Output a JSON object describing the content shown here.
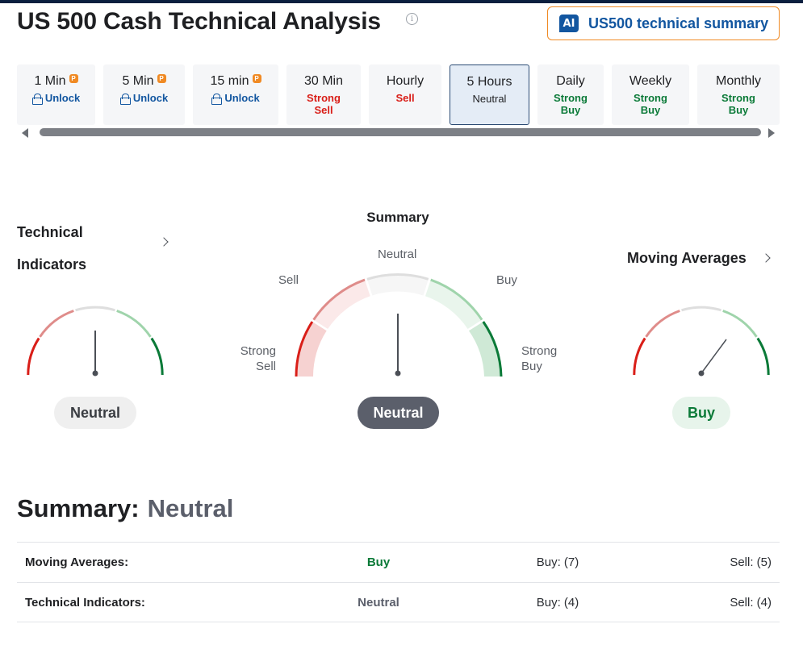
{
  "title": "US 500 Cash Technical Analysis",
  "ai_button": {
    "badge": "AI",
    "label": "US500 technical summary",
    "accent": "#f08a24",
    "brand": "#1256a0"
  },
  "tabs": [
    {
      "name": "1 Min",
      "status": "Unlock",
      "locked": true
    },
    {
      "name": "5 Min",
      "status": "Unlock",
      "locked": true
    },
    {
      "name": "15 min",
      "status": "Unlock",
      "locked": true
    },
    {
      "name": "30 Min",
      "status": "Strong Sell"
    },
    {
      "name": "Hourly",
      "status": "Sell"
    },
    {
      "name": "5 Hours",
      "status": "Neutral",
      "active": true
    },
    {
      "name": "Daily",
      "status": "Strong Buy"
    },
    {
      "name": "Weekly",
      "status": "Strong Buy"
    },
    {
      "name": "Monthly",
      "status": "Strong Buy"
    }
  ],
  "gauges": {
    "technical_indicators": {
      "title": "Technical Indicators",
      "value": "Neutral"
    },
    "summary": {
      "title": "Summary",
      "value": "Neutral",
      "labels": {
        "strong_sell": "Strong Sell",
        "sell": "Sell",
        "neutral": "Neutral",
        "buy": "Buy",
        "strong_buy": "Strong Buy"
      }
    },
    "moving_averages": {
      "title": "Moving Averages",
      "value": "Buy"
    }
  },
  "summary_section": {
    "heading": "Summary:",
    "value": "Neutral",
    "rows": [
      {
        "label": "Moving Averages:",
        "signal": "Buy",
        "buy": "Buy: (7)",
        "sell": "Sell: (5)"
      },
      {
        "label": "Technical Indicators:",
        "signal": "Neutral",
        "buy": "Buy: (4)",
        "sell": "Sell: (4)"
      }
    ]
  },
  "colors": {
    "sell": "#d91e18",
    "buy": "#0b7a38",
    "neutral": "#5b5f6b",
    "active_tab_bg": "#e4ecf6"
  }
}
